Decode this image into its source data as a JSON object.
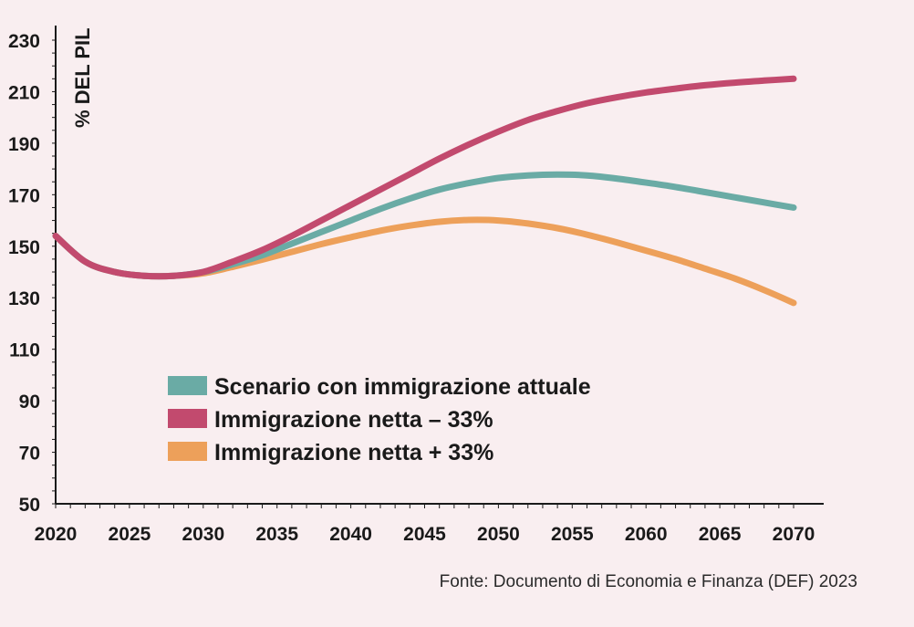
{
  "chart_data": {
    "type": "line",
    "title": "",
    "xlabel": "",
    "ylabel": "% DEL PIL",
    "xlim": [
      2020,
      2070
    ],
    "ylim": [
      50,
      230
    ],
    "x_ticks": [
      2020,
      2025,
      2030,
      2035,
      2040,
      2045,
      2050,
      2055,
      2060,
      2065,
      2070
    ],
    "y_ticks": [
      50,
      70,
      90,
      110,
      130,
      150,
      170,
      190,
      210,
      230
    ],
    "grid": false,
    "legend_position": "bottom-left",
    "x": [
      2020,
      2022,
      2024,
      2026,
      2028,
      2030,
      2032,
      2034,
      2036,
      2038,
      2040,
      2042,
      2044,
      2046,
      2048,
      2050,
      2052,
      2054,
      2056,
      2058,
      2060,
      2062,
      2064,
      2066,
      2068,
      2070
    ],
    "series": [
      {
        "name": "Scenario con immigrazione attuale",
        "color": "#6aaba5",
        "values": [
          154,
          144,
          140,
          138.5,
          138.5,
          140,
          143,
          146.5,
          151,
          155.5,
          160,
          164.5,
          168.5,
          172,
          174.5,
          176.5,
          177.5,
          177.8,
          177.5,
          176.3,
          174.7,
          173,
          171,
          169,
          167,
          165
        ]
      },
      {
        "name": "Immigrazione netta – 33%",
        "color": "#c24a6e",
        "values": [
          154,
          144,
          140,
          138.5,
          138.5,
          140,
          144,
          148.5,
          154,
          160,
          166,
          172,
          178,
          184,
          189.5,
          194.5,
          199,
          202.5,
          205.5,
          207.8,
          209.7,
          211.2,
          212.5,
          213.5,
          214.3,
          215
        ]
      },
      {
        "name": "Immigrazione netta + 33%",
        "color": "#eda05a",
        "values": [
          154,
          144,
          140,
          138.5,
          138.5,
          139.5,
          142,
          144.8,
          147.8,
          150.8,
          153.5,
          156,
          158,
          159.5,
          160.2,
          160,
          158.8,
          157,
          154.5,
          151.5,
          148.3,
          145,
          141.3,
          137.5,
          133,
          128
        ]
      }
    ]
  },
  "source": "Fonte: Documento di Economia e Finanza (DEF) 2023"
}
